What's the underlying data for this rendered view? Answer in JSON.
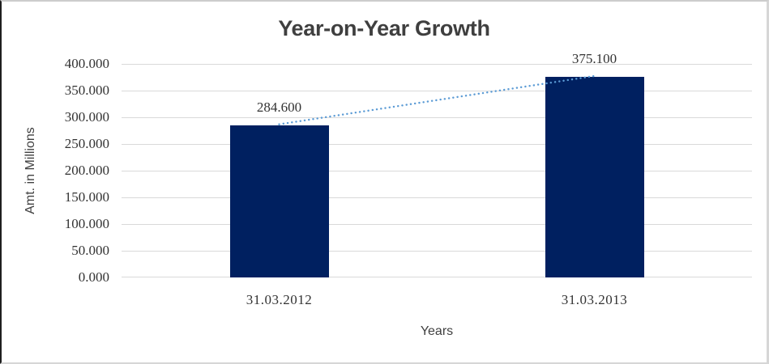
{
  "chart_data": {
    "type": "bar",
    "title": "Year-on-Year Growth",
    "xlabel": "Years",
    "ylabel": "Amt. in Millions",
    "categories": [
      "31.03.2012",
      "31.03.2013"
    ],
    "values": [
      284.6,
      375.1
    ],
    "data_labels": [
      "284.600",
      "375.100"
    ],
    "ytick_labels": [
      "0.000",
      "50.000",
      "100.000",
      "150.000",
      "200.000",
      "250.000",
      "300.000",
      "350.000",
      "400.000"
    ],
    "ylim": [
      0,
      400
    ],
    "ytick_step": 50,
    "grid": "horizontal",
    "legend": "none",
    "trendline": {
      "type": "linear",
      "style": "dotted",
      "connects": "bar tops"
    },
    "colors": {
      "bar": "#002060",
      "gridline": "#D9D9D9",
      "trendline": "#5B9BD5",
      "title_text": "#3F3F3F",
      "axis_text": "#404040",
      "tick_text": "#333333",
      "background": "#FFFFFF"
    }
  }
}
